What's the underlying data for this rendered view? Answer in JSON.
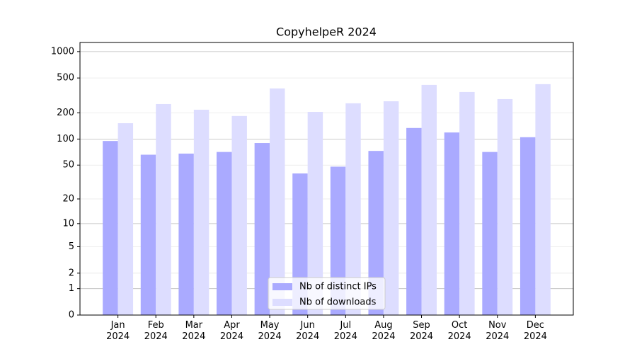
{
  "chart_data": {
    "type": "bar",
    "title": "CopyhelpeR 2024",
    "categories": [
      "Jan\n2024",
      "Feb\n2024",
      "Mar\n2024",
      "Apr\n2024",
      "May\n2024",
      "Jun\n2024",
      "Jul\n2024",
      "Aug\n2024",
      "Sep\n2024",
      "Oct\n2024",
      "Nov\n2024",
      "Dec\n2024"
    ],
    "series": [
      {
        "name": "Nb of distinct IPs",
        "color": "#aaaaff",
        "values": [
          95,
          66,
          68,
          71,
          90,
          40,
          48,
          73,
          134,
          119,
          71,
          105
        ]
      },
      {
        "name": "Nb of downloads",
        "color": "#ddddff",
        "values": [
          152,
          252,
          217,
          184,
          380,
          205,
          257,
          271,
          417,
          346,
          287,
          425
        ]
      }
    ],
    "yscale": "log10(1+y)",
    "ylim": [
      0,
      1270
    ],
    "yticks": [
      0,
      1,
      2,
      5,
      10,
      20,
      50,
      100,
      200,
      500,
      1000
    ],
    "grid": true,
    "legend": "lower center"
  }
}
